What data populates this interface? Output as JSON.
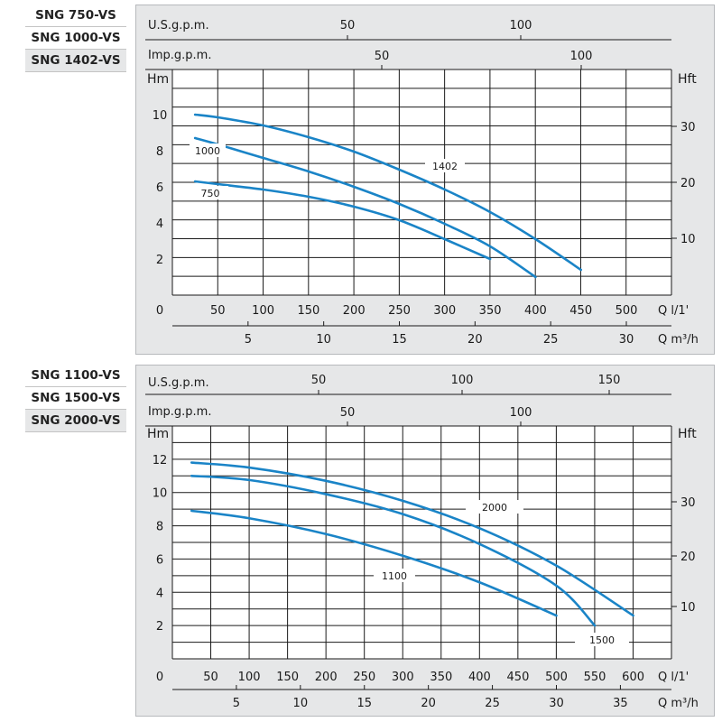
{
  "colors": {
    "curve": "#1a84c7",
    "panel_bg": "#e6e7e8",
    "grid": "#1a1a1a"
  },
  "charts": [
    {
      "models": [
        "SNG 750-VS",
        "SNG 1000-VS",
        "SNG 1402-VS"
      ],
      "top_axes": [
        {
          "label": "U.S.g.p.m.",
          "ticks": [
            "50",
            "100"
          ]
        },
        {
          "label": "Imp.g.p.m.",
          "ticks": [
            "50",
            "100"
          ]
        }
      ],
      "y_left": {
        "label": "Hm",
        "ticks": [
          "2",
          "4",
          "6",
          "8",
          "10"
        ]
      },
      "y_right": {
        "label": "Hft",
        "ticks": [
          "10",
          "20",
          "30"
        ]
      },
      "x_lpm": {
        "zero": "0",
        "ticks": [
          "50",
          "100",
          "150",
          "200",
          "250",
          "300",
          "350",
          "400",
          "450",
          "500"
        ],
        "unit": "Q  l/1'"
      },
      "x_m3h": {
        "ticks": [
          "5",
          "10",
          "15",
          "20",
          "25",
          "30"
        ],
        "unit": "Q  m³/h"
      },
      "curve_labels": [
        "750",
        "1000",
        "1402"
      ]
    },
    {
      "models": [
        "SNG 1100-VS",
        "SNG 1500-VS",
        "SNG 2000-VS"
      ],
      "top_axes": [
        {
          "label": "U.S.g.p.m.",
          "ticks": [
            "50",
            "100",
            "150"
          ]
        },
        {
          "label": "Imp.g.p.m.",
          "ticks": [
            "50",
            "100"
          ]
        }
      ],
      "y_left": {
        "label": "Hm",
        "ticks": [
          "2",
          "4",
          "6",
          "8",
          "10",
          "12"
        ]
      },
      "y_right": {
        "label": "Hft",
        "ticks": [
          "10",
          "20",
          "30"
        ]
      },
      "x_lpm": {
        "zero": "0",
        "ticks": [
          "50",
          "100",
          "150",
          "200",
          "250",
          "300",
          "350",
          "400",
          "450",
          "500",
          "550",
          "600"
        ],
        "unit": "Q  l/1'"
      },
      "x_m3h": {
        "ticks": [
          "5",
          "10",
          "15",
          "20",
          "25",
          "30",
          "35"
        ],
        "unit": "Q  m³/h"
      },
      "curve_labels": [
        "1100",
        "1500",
        "2000"
      ]
    }
  ],
  "chart_data": [
    {
      "type": "line",
      "xlabel": "Q l/1'",
      "ylabel": "Hm",
      "xlim": [
        0,
        530
      ],
      "ylim": [
        0,
        12.5
      ],
      "grid": true,
      "series": [
        {
          "name": "750",
          "x": [
            25,
            50,
            100,
            150,
            200,
            250,
            300,
            350
          ],
          "y": [
            6.3,
            6.15,
            5.85,
            5.45,
            4.9,
            4.15,
            3.1,
            2.0
          ]
        },
        {
          "name": "1000",
          "x": [
            25,
            50,
            100,
            150,
            200,
            250,
            300,
            350,
            400
          ],
          "y": [
            8.7,
            8.35,
            7.6,
            6.85,
            6.0,
            5.05,
            3.95,
            2.7,
            1.0
          ]
        },
        {
          "name": "1402",
          "x": [
            25,
            50,
            100,
            150,
            200,
            250,
            300,
            350,
            400,
            450
          ],
          "y": [
            10.0,
            9.85,
            9.4,
            8.75,
            7.95,
            6.95,
            5.85,
            4.6,
            3.1,
            1.4
          ]
        }
      ]
    },
    {
      "type": "line",
      "xlabel": "Q l/1'",
      "ylabel": "Hm",
      "xlim": [
        0,
        650
      ],
      "ylim": [
        0,
        14
      ],
      "grid": true,
      "series": [
        {
          "name": "1100",
          "x": [
            25,
            100,
            200,
            300,
            400,
            500
          ],
          "y": [
            8.9,
            8.45,
            7.5,
            6.2,
            4.6,
            2.6
          ]
        },
        {
          "name": "1500",
          "x": [
            25,
            100,
            200,
            300,
            400,
            500,
            550
          ],
          "y": [
            11.0,
            10.75,
            9.9,
            8.7,
            6.9,
            4.4,
            2.0
          ]
        },
        {
          "name": "2000",
          "x": [
            25,
            100,
            200,
            300,
            400,
            500,
            600
          ],
          "y": [
            11.8,
            11.5,
            10.7,
            9.5,
            7.85,
            5.6,
            2.6
          ]
        }
      ]
    }
  ]
}
